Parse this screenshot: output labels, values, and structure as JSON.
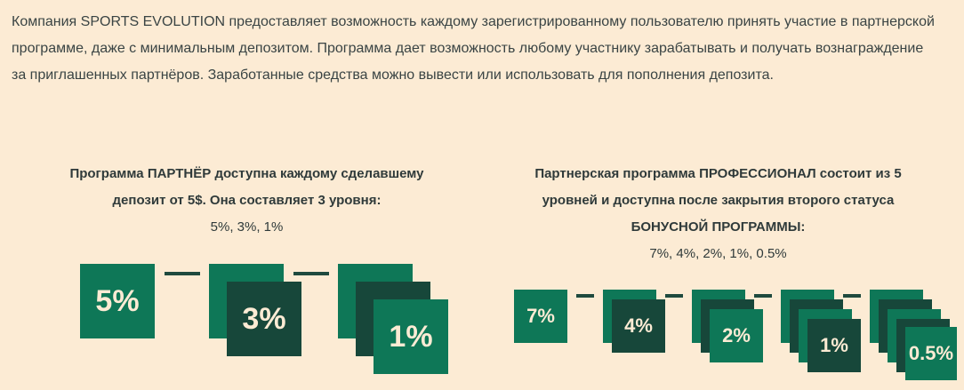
{
  "intro": {
    "line1": "Компания SPORTS EVOLUTION предоставляет возможность каждому зарегистрированному пользователю принять участие в партнерской",
    "line2": "программе, даже с минимальным депозитом. Программа дает возможность любому участнику зарабатывать и получать вознаграждение",
    "line3": "за приглашенных партнёров. Заработанные средства можно вывести или использовать для пополнения депозита."
  },
  "partner": {
    "title_line1": "Программа ПАРТНЁР доступна каждому сделавшему",
    "title_line2": "депозит от 5$. Она составляет 3 уровня:",
    "levels_text": "5%, 3%, 1%",
    "tiers": [
      "5%",
      "3%",
      "1%"
    ]
  },
  "professional": {
    "title_line1": "Партнерская программа ПРОФЕССИОНАЛ состоит из 5",
    "title_line2": "уровней и доступна после закрытия второго статуса",
    "title_line3": "БОНУСНОЙ ПРОГРАММЫ:",
    "levels_text": "7%, 4%, 2%, 1%, 0.5%",
    "tiers": [
      "7%",
      "4%",
      "2%",
      "1%",
      "0.5%"
    ]
  },
  "colors": {
    "background": "#fcebd4",
    "tile_green": "#0e7757",
    "tile_dark": "#17473a",
    "tile_text": "#fcebd4"
  }
}
